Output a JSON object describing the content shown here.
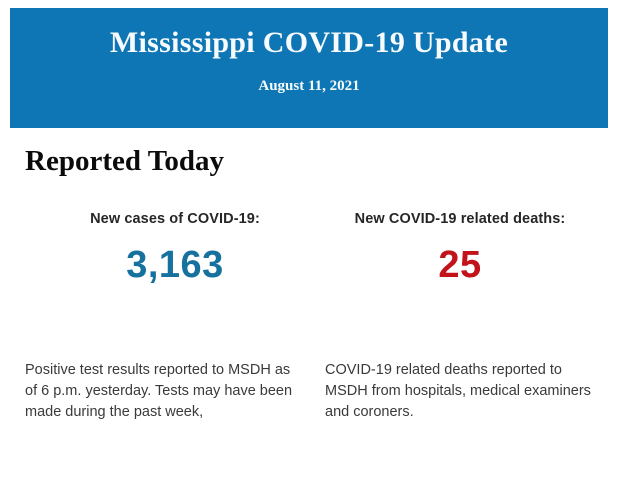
{
  "banner": {
    "title": "Mississippi COVID-19 Update",
    "date": "August 11, 2021",
    "background_color": "#0e76b4",
    "text_color": "#f8fbfd"
  },
  "section": {
    "heading": "Reported Today"
  },
  "stats": {
    "cases": {
      "label": "New cases of COVID-19:",
      "value": "3,163",
      "value_color": "#17719f",
      "description": "Positive test results reported to MSDH as of 6 p.m. yesterday. Tests may have been made during the past week,"
    },
    "deaths": {
      "label": "New COVID-19 related deaths:",
      "value": "25",
      "value_color": "#c2121a",
      "description": "COVID-19 related deaths reported to MSDH from hospitals, medical examiners and coroners."
    }
  }
}
